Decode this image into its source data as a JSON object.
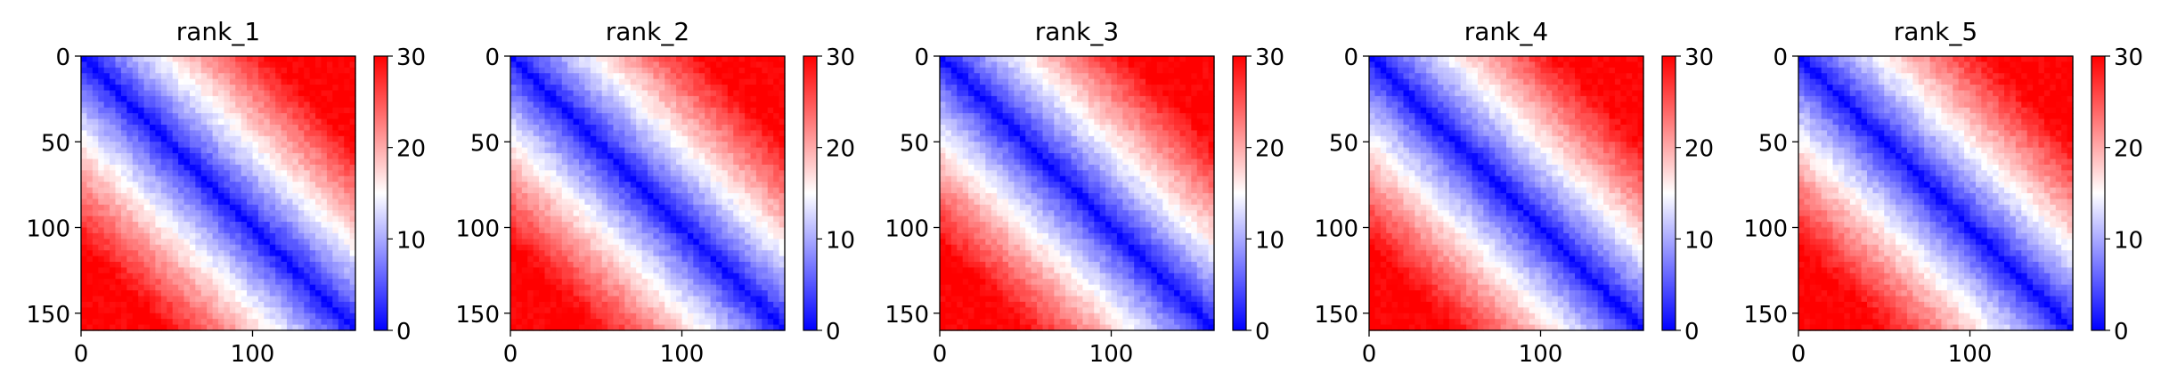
{
  "figure": {
    "layout": "1x5 heatmap grid with colorbars",
    "colormap": "bwr",
    "colors": {
      "low": "#0000ff",
      "mid": "#ffffff",
      "high": "#ff0000",
      "axis": "#000000"
    }
  },
  "chart_data": [
    {
      "type": "heatmap",
      "title": "rank_1",
      "x_range": [
        0,
        160
      ],
      "y_range": [
        0,
        160
      ],
      "y_inverted": true,
      "x_ticks": [
        0,
        100
      ],
      "y_ticks": [
        0,
        50,
        100,
        150
      ],
      "colorbar": {
        "range": [
          0,
          30
        ],
        "ticks": [
          0,
          10,
          20,
          30
        ]
      },
      "description": "symmetric distance matrix: ~0 (blue) on diagonal rising to ~30 (red) at off-diagonal corners"
    },
    {
      "type": "heatmap",
      "title": "rank_2",
      "x_range": [
        0,
        160
      ],
      "y_range": [
        0,
        160
      ],
      "y_inverted": true,
      "x_ticks": [
        0,
        100
      ],
      "y_ticks": [
        0,
        50,
        100,
        150
      ],
      "colorbar": {
        "range": [
          0,
          30
        ],
        "ticks": [
          0,
          10,
          20,
          30
        ]
      }
    },
    {
      "type": "heatmap",
      "title": "rank_3",
      "x_range": [
        0,
        160
      ],
      "y_range": [
        0,
        160
      ],
      "y_inverted": true,
      "x_ticks": [
        0,
        100
      ],
      "y_ticks": [
        0,
        50,
        100,
        150
      ],
      "colorbar": {
        "range": [
          0,
          30
        ],
        "ticks": [
          0,
          10,
          20,
          30
        ]
      }
    },
    {
      "type": "heatmap",
      "title": "rank_4",
      "x_range": [
        0,
        160
      ],
      "y_range": [
        0,
        160
      ],
      "y_inverted": true,
      "x_ticks": [
        0,
        100
      ],
      "y_ticks": [
        0,
        50,
        100,
        150
      ],
      "colorbar": {
        "range": [
          0,
          30
        ],
        "ticks": [
          0,
          10,
          20,
          30
        ]
      }
    },
    {
      "type": "heatmap",
      "title": "rank_5",
      "x_range": [
        0,
        160
      ],
      "y_range": [
        0,
        160
      ],
      "y_inverted": true,
      "x_ticks": [
        0,
        100
      ],
      "y_ticks": [
        0,
        50,
        100,
        150
      ],
      "colorbar": {
        "range": [
          0,
          30
        ],
        "ticks": [
          0,
          10,
          20,
          30
        ]
      }
    }
  ]
}
